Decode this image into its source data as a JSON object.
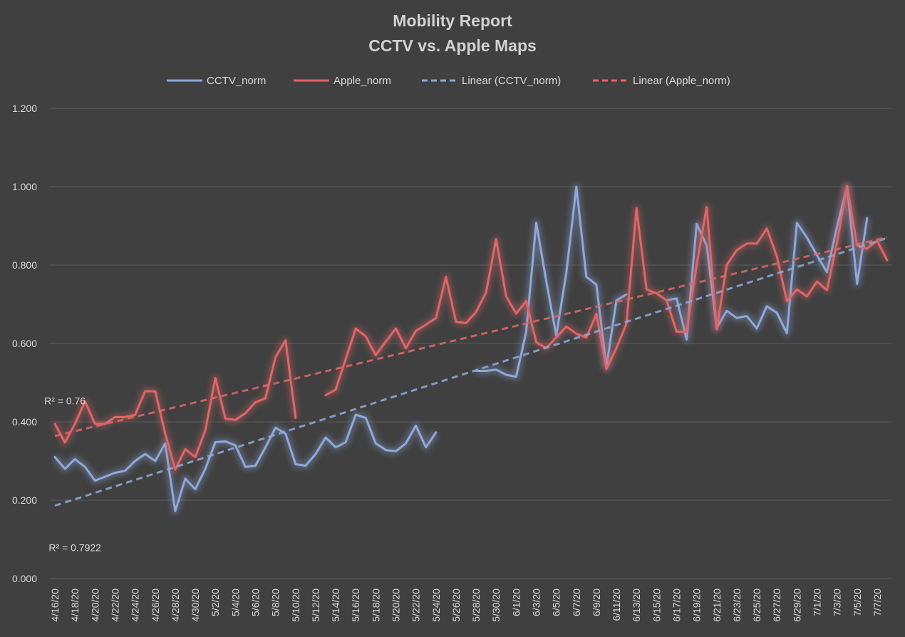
{
  "chart_data": {
    "type": "line",
    "title_line1": "Mobility Report",
    "title_line2": "CCTV vs. Apple Maps",
    "xlabel": "",
    "ylabel": "",
    "ylim": [
      0,
      1.2
    ],
    "y_ticks": [
      "0.000",
      "0.200",
      "0.400",
      "0.600",
      "0.800",
      "1.000",
      "1.200"
    ],
    "grid": true,
    "legend_position": "top",
    "x": [
      "4/16/20",
      "4/17/20",
      "4/18/20",
      "4/19/20",
      "4/20/20",
      "4/21/20",
      "4/22/20",
      "4/23/20",
      "4/24/20",
      "4/25/20",
      "4/26/20",
      "4/27/20",
      "4/28/20",
      "4/29/20",
      "4/30/20",
      "5/1/20",
      "5/2/20",
      "5/3/20",
      "5/4/20",
      "5/5/20",
      "5/6/20",
      "5/7/20",
      "5/8/20",
      "5/9/20",
      "5/10/20",
      "5/11/20",
      "5/12/20",
      "5/13/20",
      "5/14/20",
      "5/15/20",
      "5/16/20",
      "5/17/20",
      "5/18/20",
      "5/19/20",
      "5/20/20",
      "5/21/20",
      "5/22/20",
      "5/23/20",
      "5/24/20",
      "5/25/20",
      "5/26/20",
      "5/27/20",
      "5/28/20",
      "5/29/20",
      "5/30/20",
      "5/31/20",
      "6/1/20",
      "6/2/20",
      "6/3/20",
      "6/4/20",
      "6/5/20",
      "6/6/20",
      "6/7/20",
      "6/8/20",
      "6/9/20",
      "6/10/20",
      "6/11/20",
      "6/12/20",
      "6/13/20",
      "6/14/20",
      "6/15/20",
      "6/16/20",
      "6/17/20",
      "6/18/20",
      "6/19/20",
      "6/20/20",
      "6/21/20",
      "6/22/20",
      "6/23/20",
      "6/24/20",
      "6/25/20",
      "6/26/20",
      "6/27/20",
      "6/28/20",
      "6/29/20",
      "6/30/20",
      "7/1/20",
      "7/2/20",
      "7/3/20",
      "7/4/20",
      "7/5/20",
      "7/6/20",
      "7/7/20",
      "7/8/20"
    ],
    "x_tick_labels": [
      "4/16/20",
      "4/18/20",
      "4/20/20",
      "4/22/20",
      "4/24/20",
      "4/26/20",
      "4/28/20",
      "4/30/20",
      "5/2/20",
      "5/4/20",
      "5/6/20",
      "5/8/20",
      "5/10/20",
      "5/12/20",
      "5/14/20",
      "5/16/20",
      "5/18/20",
      "5/20/20",
      "5/22/20",
      "5/24/20",
      "5/26/20",
      "5/28/20",
      "5/30/20",
      "6/1/20",
      "6/3/20",
      "6/5/20",
      "6/7/20",
      "6/9/20",
      "6/11/20",
      "6/13/20",
      "6/15/20",
      "6/17/20",
      "6/19/20",
      "6/21/20",
      "6/23/20",
      "6/25/20",
      "6/27/20",
      "6/29/20",
      "7/1/20",
      "7/3/20",
      "7/5/20",
      "7/7/20"
    ],
    "series": [
      {
        "name": "CCTV_norm",
        "color": "#8ea9db",
        "style": "solid",
        "values": [
          0.31,
          0.28,
          0.305,
          0.285,
          0.25,
          0.26,
          0.27,
          0.275,
          0.3,
          0.318,
          0.3,
          0.345,
          0.172,
          0.255,
          0.228,
          0.28,
          0.348,
          0.35,
          0.34,
          0.285,
          0.288,
          0.335,
          0.385,
          0.37,
          0.292,
          0.288,
          0.318,
          0.36,
          0.335,
          0.348,
          0.418,
          0.41,
          0.345,
          0.328,
          0.325,
          0.345,
          0.39,
          0.335,
          0.373,
          null,
          null,
          null,
          0.53,
          0.53,
          0.533,
          0.52,
          0.515,
          0.63,
          0.908,
          0.76,
          0.62,
          0.78,
          1.0,
          0.77,
          0.75,
          0.54,
          0.71,
          0.725,
          null,
          null,
          null,
          0.71,
          0.715,
          0.61,
          0.905,
          0.85,
          0.64,
          0.683,
          0.665,
          0.67,
          0.638,
          0.695,
          0.678,
          0.626,
          0.908,
          0.87,
          0.825,
          0.782,
          0.898,
          1.0,
          0.752,
          0.92,
          null,
          null
        ]
      },
      {
        "name": "Apple_norm",
        "color": "#e06666",
        "style": "solid",
        "values": [
          0.395,
          0.347,
          0.395,
          0.452,
          0.395,
          0.395,
          0.412,
          0.412,
          0.418,
          0.478,
          0.478,
          0.37,
          0.278,
          0.33,
          0.31,
          0.378,
          0.512,
          0.408,
          0.405,
          0.422,
          0.45,
          0.46,
          0.565,
          0.608,
          0.41,
          null,
          null,
          0.468,
          0.482,
          0.56,
          0.638,
          0.618,
          0.57,
          0.605,
          0.638,
          0.588,
          0.632,
          0.648,
          0.665,
          0.77,
          0.655,
          0.652,
          0.68,
          0.73,
          0.866,
          0.72,
          0.676,
          0.708,
          0.603,
          0.588,
          0.615,
          0.643,
          0.625,
          0.615,
          0.675,
          0.535,
          0.588,
          0.65,
          0.945,
          0.738,
          0.728,
          0.71,
          0.63,
          0.63,
          0.8,
          0.948,
          0.636,
          0.8,
          0.838,
          0.855,
          0.855,
          0.893,
          0.822,
          0.708,
          0.738,
          0.72,
          0.758,
          0.736,
          0.858,
          1.002,
          0.85,
          0.842,
          0.862,
          0.812
        ]
      },
      {
        "name": "Linear (CCTV_norm)",
        "color": "#8ea9db",
        "style": "dashed",
        "trend": [
          0.186,
          0.869
        ]
      },
      {
        "name": "Linear (Apple_norm)",
        "color": "#e06666",
        "style": "dashed",
        "trend": [
          0.364,
          0.871
        ]
      }
    ],
    "annotations": [
      {
        "text": "R² = 0.76",
        "at_x": "4/17/20",
        "at_y": 0.445
      },
      {
        "text": "R² = 0.7922",
        "at_x": "4/18/20",
        "at_y": 0.07
      }
    ]
  }
}
